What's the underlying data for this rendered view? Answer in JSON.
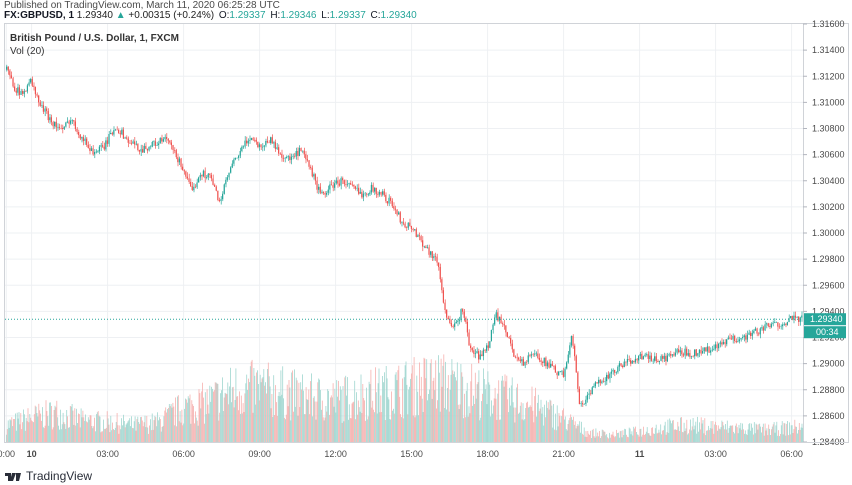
{
  "header": {
    "published": "Published on TradingView.com, March 11, 2020 06:25:28 UTC",
    "symbol": "FX:GBPUSD, 1",
    "last": "1.29340",
    "change_arrow": "▲",
    "change": "+0.00315 (+0.24%)",
    "o_label": "O:",
    "o_value": "1.29337",
    "h_label": "H:",
    "h_value": "1.29346",
    "l_label": "L:",
    "l_value": "1.29337",
    "c_label": "C:",
    "c_value": "1.29340"
  },
  "legend": {
    "title": "British Pound / U.S. Dollar, 1, FXCM",
    "volume": "Vol (20)"
  },
  "price_tag": {
    "value": "1.29340",
    "countdown": "00:34",
    "color": "#26a69a"
  },
  "footer": {
    "brand": "TradingView",
    "logo_icon": "tradingview-logo-icon"
  },
  "colors": {
    "up": "#26a69a",
    "down": "#ef5350",
    "vol_up": "#9fd6cf",
    "vol_down": "#f6b0ae",
    "grid": "#eef0f3",
    "line": "#26a69a"
  },
  "chart_data": {
    "type": "candlestick",
    "title": "British Pound / U.S. Dollar, 1, FXCM",
    "indicator": "Vol (20)",
    "grid": true,
    "ylim": [
      1.284,
      1.316
    ],
    "y_ticks": [
      "1.31600",
      "1.31400",
      "1.31200",
      "1.31000",
      "1.30800",
      "1.30600",
      "1.30400",
      "1.30200",
      "1.30000",
      "1.29800",
      "1.29600",
      "1.29400",
      "1.29200",
      "1.29000",
      "1.28800",
      "1.28600",
      "1.28400"
    ],
    "x_ticks": [
      {
        "label": "0:00",
        "t": 0
      },
      {
        "label": "10",
        "t": 1
      },
      {
        "label": "03:00",
        "t": 4
      },
      {
        "label": "06:00",
        "t": 7
      },
      {
        "label": "09:00",
        "t": 10
      },
      {
        "label": "12:00",
        "t": 13
      },
      {
        "label": "15:00",
        "t": 16
      },
      {
        "label": "18:00",
        "t": 19
      },
      {
        "label": "21:00",
        "t": 22
      },
      {
        "label": "11",
        "t": 25
      },
      {
        "label": "03:00",
        "t": 28
      },
      {
        "label": "06:00",
        "t": 31
      }
    ],
    "x_range_hours": [
      -0.05,
      31.45
    ],
    "current_price": 1.2934,
    "price_path": [
      [
        0.0,
        1.3125
      ],
      [
        0.3,
        1.3112
      ],
      [
        0.6,
        1.3105
      ],
      [
        0.9,
        1.3118
      ],
      [
        1.3,
        1.3098
      ],
      [
        1.8,
        1.3085
      ],
      [
        2.2,
        1.3078
      ],
      [
        2.5,
        1.3088
      ],
      [
        3.0,
        1.3072
      ],
      [
        3.4,
        1.3062
      ],
      [
        3.8,
        1.3065
      ],
      [
        4.3,
        1.3082
      ],
      [
        4.8,
        1.307
      ],
      [
        5.3,
        1.3064
      ],
      [
        5.8,
        1.3068
      ],
      [
        6.3,
        1.3072
      ],
      [
        6.7,
        1.3058
      ],
      [
        7.0,
        1.3048
      ],
      [
        7.3,
        1.303
      ],
      [
        7.6,
        1.3046
      ],
      [
        8.0,
        1.3044
      ],
      [
        8.4,
        1.3024
      ],
      [
        8.8,
        1.3048
      ],
      [
        9.2,
        1.3062
      ],
      [
        9.6,
        1.3074
      ],
      [
        10.0,
        1.3066
      ],
      [
        10.4,
        1.3072
      ],
      [
        10.8,
        1.306
      ],
      [
        11.2,
        1.3056
      ],
      [
        11.6,
        1.3063
      ],
      [
        12.0,
        1.3048
      ],
      [
        12.4,
        1.3028
      ],
      [
        12.8,
        1.3036
      ],
      [
        13.2,
        1.304
      ],
      [
        13.6,
        1.3035
      ],
      [
        14.0,
        1.303
      ],
      [
        14.4,
        1.3034
      ],
      [
        14.8,
        1.303
      ],
      [
        15.2,
        1.3022
      ],
      [
        15.6,
        1.3008
      ],
      [
        16.0,
        1.3004
      ],
      [
        16.5,
        1.299
      ],
      [
        17.0,
        1.2978
      ],
      [
        17.3,
        1.294
      ],
      [
        17.6,
        1.2925
      ],
      [
        18.0,
        1.2942
      ],
      [
        18.3,
        1.291
      ],
      [
        18.7,
        1.2905
      ],
      [
        19.0,
        1.2915
      ],
      [
        19.3,
        1.2938
      ],
      [
        19.7,
        1.2924
      ],
      [
        20.0,
        1.2908
      ],
      [
        20.4,
        1.29
      ],
      [
        20.8,
        1.2908
      ],
      [
        21.2,
        1.2902
      ],
      [
        21.6,
        1.2895
      ],
      [
        22.0,
        1.289
      ],
      [
        22.3,
        1.2925
      ],
      [
        22.6,
        1.2868
      ],
      [
        23.0,
        1.2876
      ],
      [
        23.4,
        1.2888
      ],
      [
        23.8,
        1.289
      ],
      [
        24.2,
        1.2898
      ],
      [
        24.6,
        1.2902
      ],
      [
        25.0,
        1.2906
      ],
      [
        25.5,
        1.2903
      ],
      [
        26.0,
        1.2904
      ],
      [
        26.5,
        1.2909
      ],
      [
        27.0,
        1.2908
      ],
      [
        27.5,
        1.291
      ],
      [
        28.0,
        1.2912
      ],
      [
        28.5,
        1.2918
      ],
      [
        29.0,
        1.292
      ],
      [
        29.5,
        1.2924
      ],
      [
        30.0,
        1.2928
      ],
      [
        30.5,
        1.2931
      ],
      [
        31.0,
        1.2934
      ],
      [
        31.4,
        1.2934
      ]
    ],
    "volume_profile": [
      [
        0.0,
        0.22
      ],
      [
        1.0,
        0.32
      ],
      [
        2.0,
        0.38
      ],
      [
        3.0,
        0.28
      ],
      [
        4.0,
        0.26
      ],
      [
        5.0,
        0.22
      ],
      [
        6.0,
        0.26
      ],
      [
        7.0,
        0.45
      ],
      [
        8.0,
        0.52
      ],
      [
        9.0,
        0.68
      ],
      [
        10.0,
        0.7
      ],
      [
        11.0,
        0.64
      ],
      [
        12.0,
        0.58
      ],
      [
        13.0,
        0.55
      ],
      [
        14.0,
        0.62
      ],
      [
        15.0,
        0.66
      ],
      [
        16.0,
        0.72
      ],
      [
        17.0,
        0.78
      ],
      [
        18.0,
        0.72
      ],
      [
        19.0,
        0.62
      ],
      [
        20.0,
        0.55
      ],
      [
        21.0,
        0.45
      ],
      [
        22.0,
        0.3
      ],
      [
        23.0,
        0.12
      ],
      [
        24.0,
        0.1
      ],
      [
        25.0,
        0.14
      ],
      [
        26.0,
        0.2
      ],
      [
        27.0,
        0.22
      ],
      [
        28.0,
        0.2
      ],
      [
        29.0,
        0.18
      ],
      [
        30.0,
        0.16
      ],
      [
        31.4,
        0.2
      ]
    ]
  }
}
